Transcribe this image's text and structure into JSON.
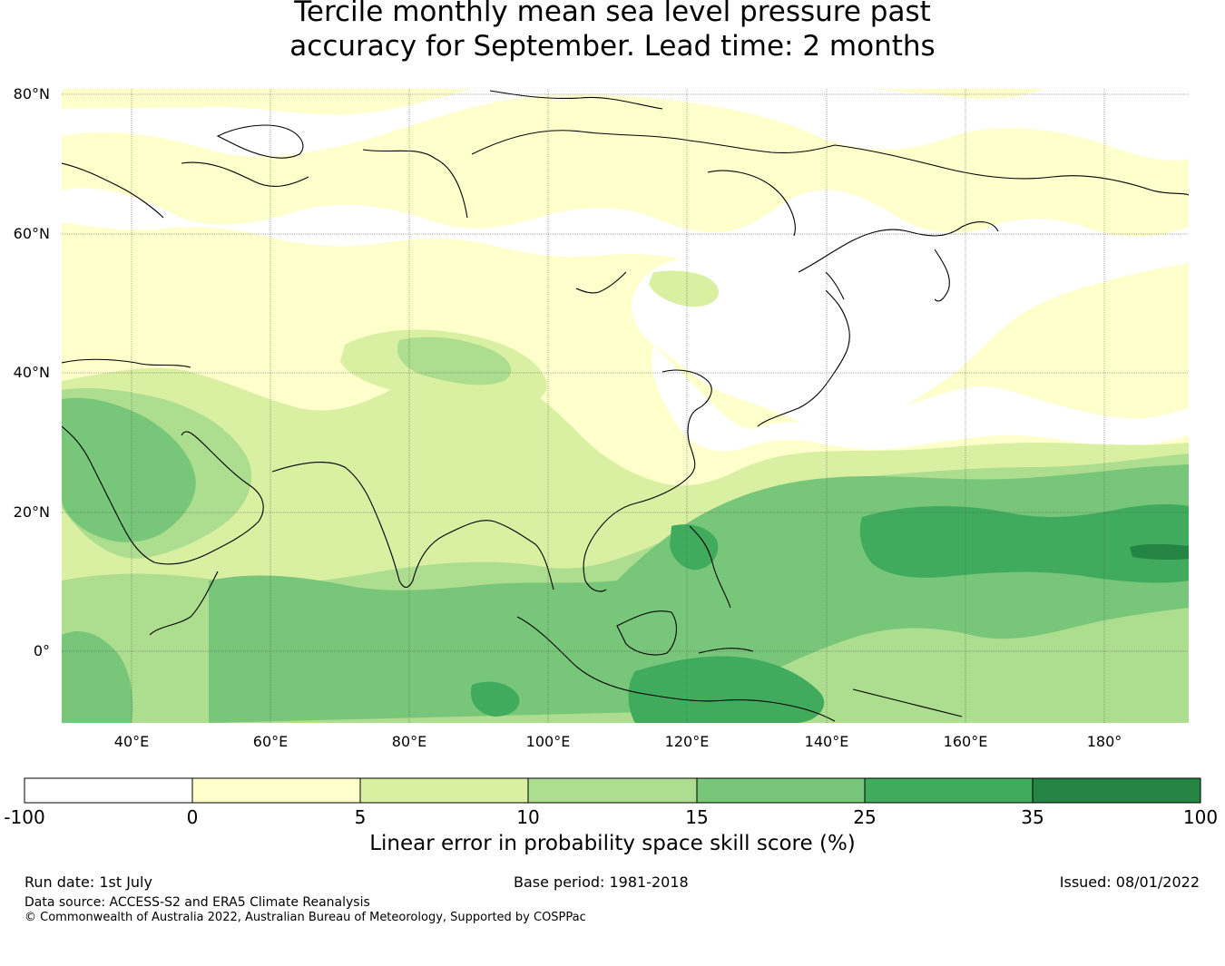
{
  "title": {
    "line1": "Tercile monthly mean sea level pressure past",
    "line2": "accuracy for September. Lead time: 2 months"
  },
  "map": {
    "lat_labels": [
      "80°N",
      "60°N",
      "40°N",
      "20°N",
      "0°"
    ],
    "lon_labels": [
      "40°E",
      "60°E",
      "80°E",
      "100°E",
      "120°E",
      "140°E",
      "160°E",
      "180°"
    ],
    "extent": {
      "lon": [
        30,
        192
      ],
      "lat": [
        -10,
        80
      ]
    }
  },
  "colorbar": {
    "ticks": [
      "-100",
      "0",
      "5",
      "10",
      "15",
      "25",
      "35",
      "100"
    ],
    "colors": [
      "#ffffff",
      "#ffffcc",
      "#d9f0a3",
      "#addd8e",
      "#78c679",
      "#41ab5d",
      "#238443"
    ],
    "label": "Linear error in probability space skill score (%)"
  },
  "footer": {
    "run_date": "Run date: 1st July",
    "base_period": "Base period: 1981-2018",
    "issued": "Issued: 08/01/2022",
    "data_source": "Data source: ACCESS-S2 and ERA5 Climate Reanalysis",
    "copyright": "© Commonwealth of Australia 2022, Australian Bureau of Meteorology, Supported by COSPPac"
  }
}
